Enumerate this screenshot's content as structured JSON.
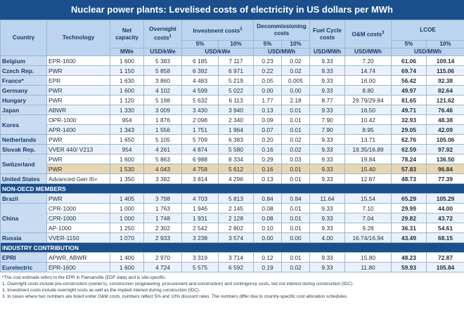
{
  "title": "Nuclear power plants: Levelised costs of electricity in US dollars per MWh",
  "columns": [
    {
      "label": "Country"
    },
    {
      "label": "Technology"
    },
    {
      "label": "Net capacity",
      "unit": "MWe"
    },
    {
      "label": "Overnight costs",
      "note": "1",
      "unit": "USD/kWe"
    },
    {
      "label": "Investment costs",
      "note": "2",
      "sub": [
        "5%",
        "10%"
      ],
      "unit": "USD/kWe"
    },
    {
      "label": "Decommissioning costs",
      "sub": [
        "5%",
        "10%"
      ],
      "unit": "USD/MWh"
    },
    {
      "label": "Fuel Cycle costs",
      "unit": "USD/MWh"
    },
    {
      "label": "O&M costs",
      "note": "3",
      "unit": "USD/MWh"
    },
    {
      "label": "LCOE",
      "sub": [
        "5%",
        "10%"
      ],
      "unit": "USD/MWh"
    }
  ],
  "sections": [
    {
      "groups": [
        {
          "country": "Belgium",
          "rows": [
            {
              "cells": [
                "EPR-1600",
                "1 600",
                "5 383",
                "6 185",
                "7 117",
                "0.23",
                "0.02",
                "9.33",
                "7.20",
                "61.06",
                "109.14"
              ]
            }
          ]
        },
        {
          "country": "Czech Rep.",
          "rows": [
            {
              "cells": [
                "PWR",
                "1 150",
                "5 858",
                "6 392",
                "6 971",
                "0.22",
                "0.02",
                "9.33",
                "14.74",
                "69.74",
                "115.06"
              ]
            }
          ]
        },
        {
          "country": "France*",
          "rows": [
            {
              "cells": [
                "EPR",
                "1 630",
                "3 860",
                "4 483",
                "5 219",
                "0.05",
                "0.005",
                "9.33",
                "16.00",
                "56.42",
                "92.38"
              ]
            }
          ]
        },
        {
          "country": "Germany",
          "rows": [
            {
              "cells": [
                "PWR",
                "1 600",
                "4 102",
                "4 599",
                "5 022",
                "0.00",
                "0.00",
                "9.33",
                "8.80",
                "49.97",
                "82.64"
              ]
            }
          ]
        },
        {
          "country": "Hungary",
          "rows": [
            {
              "cells": [
                "PWR",
                "1 120",
                "5 198",
                "5 632",
                "6 113",
                "1.77",
                "2.18",
                "8.77",
                "29.79/29.84",
                "81.65",
                "121.62"
              ]
            }
          ]
        },
        {
          "country": "Japan",
          "rows": [
            {
              "cells": [
                "ABWR",
                "1 330",
                "3 009",
                "3 430",
                "3 940",
                "0.13",
                "0.01",
                "9.33",
                "16.50",
                "49.71",
                "76.46"
              ]
            }
          ]
        },
        {
          "country": "Korea",
          "rows": [
            {
              "cells": [
                "OPR-1000",
                "954",
                "1 876",
                "2 098",
                "2 340",
                "0.09",
                "0.01",
                "7.90",
                "10.42",
                "32.93",
                "48.38"
              ]
            },
            {
              "cells": [
                "APR-1400",
                "1 343",
                "1 556",
                "1 751",
                "1 964",
                "0.07",
                "0.01",
                "7.90",
                "8.95",
                "29.05",
                "42.09"
              ]
            }
          ]
        },
        {
          "country": "Netherlands",
          "rows": [
            {
              "cells": [
                "PWR",
                "1 650",
                "5 105",
                "5 709",
                "6 383",
                "0.20",
                "0.02",
                "9.33",
                "13.71",
                "62.76",
                "105.06"
              ]
            }
          ]
        },
        {
          "country": "Slovak Rep.",
          "rows": [
            {
              "cells": [
                "VVER 440/ V213",
                "954",
                "4 261",
                "4 874",
                "5 580",
                "0.16",
                "0.02",
                "9.33",
                "19.35/16.89",
                "62.59",
                "97.92"
              ]
            }
          ]
        },
        {
          "country": "Switzerland",
          "rows": [
            {
              "cells": [
                "PWR",
                "1 600",
                "5 863",
                "6 988",
                "8 334",
                "0.29",
                "0.03",
                "9.33",
                "19.84",
                "78.24",
                "136.50"
              ]
            },
            {
              "cells": [
                "PWR",
                "1 530",
                "4 043",
                "4 758",
                "5 612",
                "0.16",
                "0.01",
                "9.33",
                "15.40",
                "57.83",
                "96.84"
              ],
              "highlight": true
            }
          ]
        },
        {
          "country": "United States",
          "rows": [
            {
              "cells": [
                "Advanced Gen III+",
                "1 350",
                "3 382",
                "3 814",
                "4 296",
                "0.13",
                "0.01",
                "9.33",
                "12.87",
                "48.73",
                "77.39"
              ]
            }
          ]
        }
      ]
    },
    {
      "title": "NON-OECD MEMBERS",
      "groups": [
        {
          "country": "Brazil",
          "rows": [
            {
              "cells": [
                "PWR",
                "1 405",
                "3 798",
                "4 703",
                "5 813",
                "0.84",
                "0.84",
                "11.64",
                "15.54",
                "65.29",
                "105.29"
              ]
            }
          ]
        },
        {
          "country": "China",
          "rows": [
            {
              "cells": [
                "CPR-1000",
                "1 000",
                "1 763",
                "1 946",
                "2 145",
                "0.08",
                "0.01",
                "9.33",
                "7.10",
                "29.99",
                "44.00"
              ]
            },
            {
              "cells": [
                "CPR-1000",
                "1 000",
                "1 748",
                "1 931",
                "2 128",
                "0.08",
                "0.01",
                "9.33",
                "7.04",
                "29.82",
                "43.72"
              ]
            },
            {
              "cells": [
                "AP-1000",
                "1 250",
                "2 302",
                "2 542",
                "2 802",
                "0.10",
                "0.01",
                "9.33",
                "9.28",
                "36.31",
                "54.61"
              ]
            }
          ]
        },
        {
          "country": "Russia",
          "rows": [
            {
              "cells": [
                "VVER-1150",
                "1 070",
                "2 933",
                "3 238",
                "3 574",
                "0.00",
                "0.00",
                "4.00",
                "16.74/16.94",
                "43.49",
                "68.15"
              ]
            }
          ]
        }
      ]
    },
    {
      "title": "INDUSTRY CONTRIBUTION",
      "groups": [
        {
          "country": "EPRI",
          "rows": [
            {
              "cells": [
                "APWR, ABWR",
                "1 400",
                "2 970",
                "3 319",
                "3 714",
                "0.12",
                "0.01",
                "9.33",
                "15.80",
                "48.23",
                "72.87"
              ]
            }
          ]
        },
        {
          "country": "Eurelectric",
          "rows": [
            {
              "cells": [
                "EPR-1600",
                "1 600",
                "4 724",
                "5 575",
                "6 592",
                "0.19",
                "0.02",
                "9.33",
                "11.80",
                "59.93",
                "105.84"
              ]
            }
          ]
        }
      ]
    }
  ],
  "footnotes": [
    "*The cost estimate refers to the EPR in Flamanville (EDF data) and is site-specific.",
    "1. Overnight costs include pre-construction (owner's), construction (engineering, procurement and construction) and contingency costs, but not interest during construction (IDC).",
    "2. Investment costs include overnight costs as well as the implied interest during construction (IDC).",
    "3. In cases where two numbers are listed under O&M costs, numbers reflect 5% and 10% discount rates. The numbers differ due to country-specific cost allocation schedules."
  ]
}
